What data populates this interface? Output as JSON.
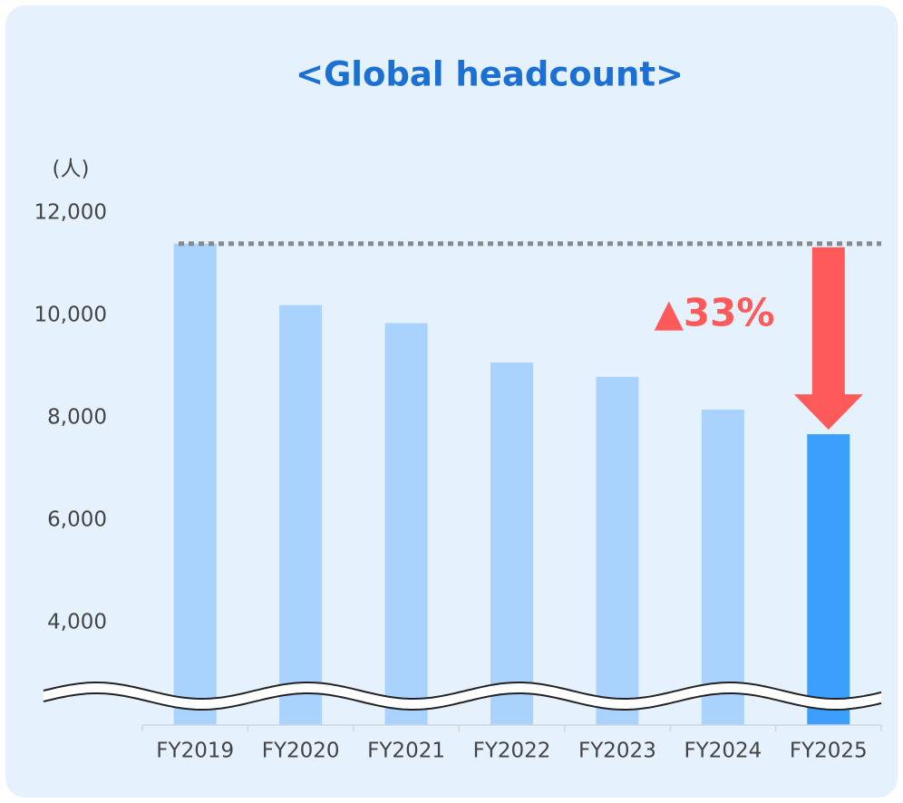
{
  "chart_data": {
    "type": "bar",
    "title": "<Global headcount>",
    "y_unit_label": "(人)",
    "annotation": "▲33%",
    "categories": [
      "FY2019",
      "FY2020",
      "FY2021",
      "FY2022",
      "FY2023",
      "FY2024",
      "FY2025"
    ],
    "values": [
      11400,
      10200,
      9850,
      9080,
      8800,
      8160,
      7680
    ],
    "colors": [
      "#a9d3fd",
      "#a9d3fd",
      "#a9d3fd",
      "#a9d3fd",
      "#a9d3fd",
      "#a9d3fd",
      "#3d9ffd"
    ],
    "ylim": [
      2000,
      12000
    ],
    "yticks": [
      {
        "value": 4000,
        "label": "4,000"
      },
      {
        "value": 6000,
        "label": "6,000"
      },
      {
        "value": 8000,
        "label": "8,000"
      },
      {
        "value": 10000,
        "label": "10,000"
      },
      {
        "value": 12000,
        "label": "12,000"
      }
    ],
    "axis_break": true,
    "grid": false
  }
}
